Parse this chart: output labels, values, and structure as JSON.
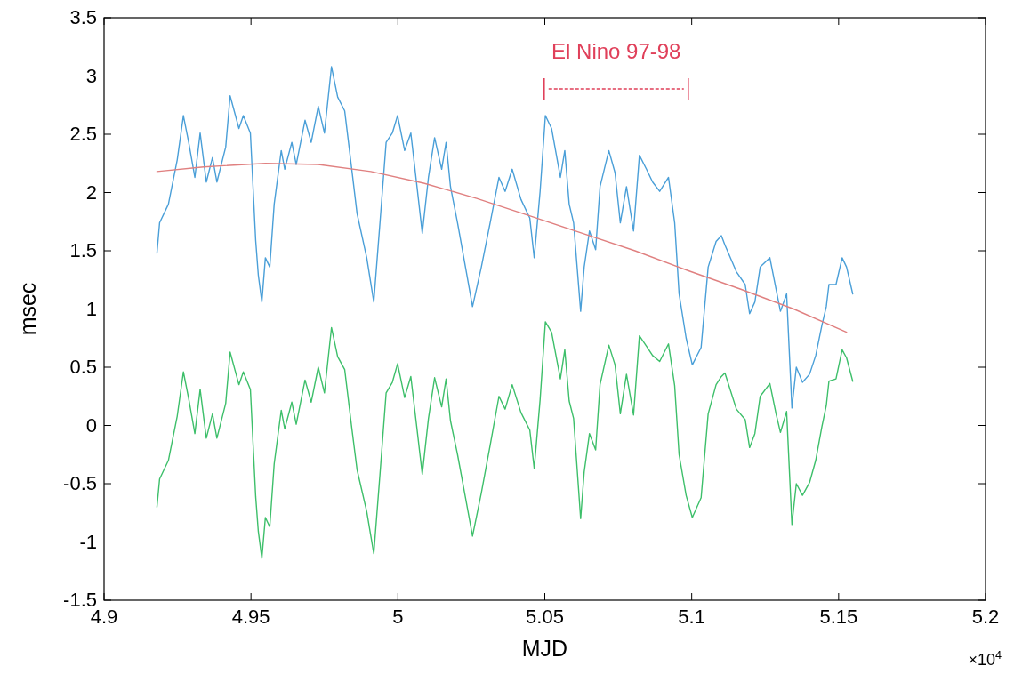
{
  "chart_data": {
    "type": "line",
    "xlabel": "MJD",
    "ylabel": "msec",
    "x": [
      4.918,
      4.9189,
      4.9219,
      4.9249,
      4.927,
      4.9288,
      4.9309,
      4.9327,
      4.9348,
      4.9369,
      4.9384,
      4.9414,
      4.9429,
      4.9459,
      4.9474,
      4.9498,
      4.9516,
      4.9525,
      4.9537,
      4.9549,
      4.9564,
      4.9579,
      4.9603,
      4.9615,
      4.9639,
      4.9654,
      4.9684,
      4.9705,
      4.9729,
      4.975,
      4.9774,
      4.9795,
      4.9819,
      4.9843,
      4.9861,
      4.9894,
      4.9918,
      4.9939,
      4.996,
      4.9981,
      4.9999,
      5.0023,
      5.0044,
      5.0065,
      5.0083,
      5.0104,
      5.0125,
      5.0149,
      5.0164,
      5.0179,
      5.0203,
      5.023,
      5.0254,
      5.0284,
      5.0314,
      5.0344,
      5.0365,
      5.0389,
      5.0419,
      5.0449,
      5.0464,
      5.0484,
      5.0502,
      5.0523,
      5.0553,
      5.0568,
      5.0583,
      5.0598,
      5.0622,
      5.0634,
      5.0652,
      5.0673,
      5.0688,
      5.0718,
      5.0739,
      5.0757,
      5.0778,
      5.0802,
      5.0822,
      5.0846,
      5.0867,
      5.0891,
      5.0921,
      5.0942,
      5.0957,
      5.0981,
      5.1002,
      5.1032,
      5.1056,
      5.1083,
      5.1101,
      5.1113,
      5.1152,
      5.1182,
      5.1197,
      5.1215,
      5.1233,
      5.1266,
      5.1287,
      5.1302,
      5.1323,
      5.1341,
      5.1356,
      5.1377,
      5.1401,
      5.1422,
      5.1443,
      5.1458,
      5.1467,
      5.1491,
      5.1512,
      5.1527,
      5.1548
    ],
    "series": [
      {
        "color": "#4a9fd8",
        "values": [
          1.48,
          1.74,
          1.9,
          2.28,
          2.66,
          2.43,
          2.13,
          2.51,
          2.09,
          2.3,
          2.09,
          2.39,
          2.83,
          2.55,
          2.66,
          2.51,
          1.59,
          1.29,
          1.06,
          1.44,
          1.36,
          1.9,
          2.36,
          2.2,
          2.43,
          2.24,
          2.62,
          2.43,
          2.74,
          2.51,
          3.08,
          2.82,
          2.7,
          2.2,
          1.82,
          1.44,
          1.06,
          1.74,
          2.43,
          2.51,
          2.66,
          2.36,
          2.51,
          2.05,
          1.65,
          2.13,
          2.47,
          2.2,
          2.43,
          2.05,
          1.74,
          1.36,
          1.02,
          1.36,
          1.74,
          2.13,
          2.01,
          2.2,
          1.94,
          1.78,
          1.44,
          2.01,
          2.66,
          2.55,
          2.13,
          2.36,
          1.9,
          1.74,
          0.98,
          1.36,
          1.67,
          1.51,
          2.05,
          2.36,
          2.17,
          1.74,
          2.05,
          1.67,
          2.32,
          2.2,
          2.09,
          2.01,
          2.13,
          1.74,
          1.13,
          0.75,
          0.52,
          0.67,
          1.36,
          1.58,
          1.63,
          1.55,
          1.32,
          1.21,
          0.96,
          1.06,
          1.36,
          1.44,
          1.17,
          0.98,
          1.13,
          0.15,
          0.5,
          0.37,
          0.44,
          0.6,
          0.86,
          1.02,
          1.21,
          1.21,
          1.44,
          1.36,
          1.13
        ]
      },
      {
        "color": "#3dbf6a",
        "values": [
          -0.7,
          -0.46,
          -0.3,
          0.08,
          0.46,
          0.23,
          -0.07,
          0.31,
          -0.11,
          0.1,
          -0.11,
          0.19,
          0.63,
          0.35,
          0.46,
          0.31,
          -0.61,
          -0.91,
          -1.14,
          -0.79,
          -0.87,
          -0.33,
          0.13,
          -0.03,
          0.2,
          0.01,
          0.39,
          0.2,
          0.5,
          0.28,
          0.84,
          0.59,
          0.48,
          -0.02,
          -0.38,
          -0.74,
          -1.1,
          -0.42,
          0.28,
          0.37,
          0.53,
          0.24,
          0.42,
          -0.03,
          -0.42,
          0.06,
          0.41,
          0.16,
          0.4,
          0.04,
          -0.25,
          -0.62,
          -0.95,
          -0.58,
          -0.17,
          0.25,
          0.14,
          0.35,
          0.11,
          -0.04,
          -0.37,
          0.22,
          0.89,
          0.8,
          0.4,
          0.65,
          0.21,
          0.06,
          -0.8,
          -0.4,
          -0.07,
          -0.21,
          0.35,
          0.69,
          0.52,
          0.1,
          0.44,
          0.09,
          0.77,
          0.68,
          0.6,
          0.55,
          0.7,
          0.34,
          -0.25,
          -0.6,
          -0.79,
          -0.62,
          0.1,
          0.35,
          0.42,
          0.45,
          0.14,
          0.05,
          -0.19,
          -0.07,
          0.25,
          0.36,
          0.1,
          -0.06,
          0.12,
          -0.85,
          -0.5,
          -0.6,
          -0.49,
          -0.3,
          -0.01,
          0.17,
          0.38,
          0.4,
          0.65,
          0.58,
          0.38
        ]
      },
      {
        "color": "#e08080",
        "x": [
          4.918,
          4.9339,
          4.9549,
          4.9729,
          4.9908,
          5.0088,
          5.0268,
          5.0448,
          5.0628,
          5.0807,
          5.0987,
          5.1167,
          5.1347,
          5.1527
        ],
        "values": [
          2.18,
          2.22,
          2.25,
          2.24,
          2.18,
          2.08,
          1.95,
          1.8,
          1.65,
          1.5,
          1.33,
          1.17,
          1.0,
          0.8
        ]
      }
    ],
    "xlim": [
      4.9,
      5.2
    ],
    "xticks": [
      4.9,
      4.95,
      5,
      5.05,
      5.1,
      5.15,
      5.2
    ],
    "ylim": [
      -1.5,
      3.5
    ],
    "yticks": [
      -1.5,
      -1,
      -0.5,
      0,
      0.5,
      1,
      1.5,
      2,
      2.5,
      3,
      3.5
    ],
    "annotations": [
      "El Nino 97-98",
      "×10$^{4}$"
    ],
    "grid": false
  }
}
